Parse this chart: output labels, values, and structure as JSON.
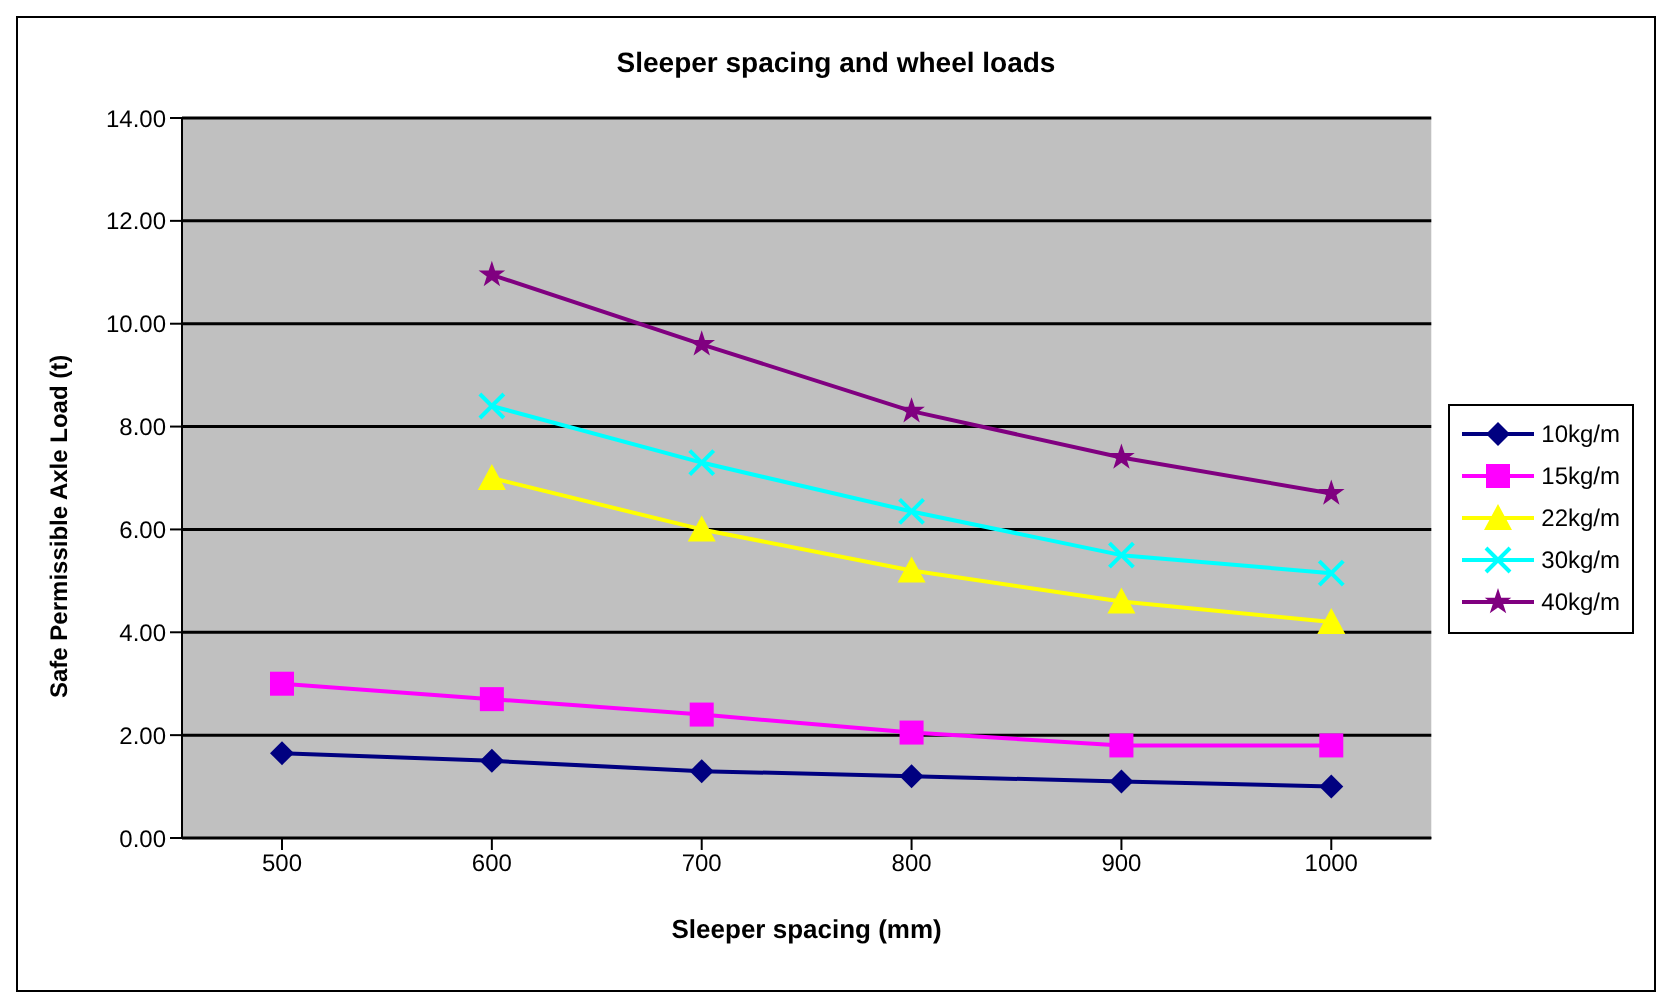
{
  "chart_data": {
    "type": "line",
    "title": "Sleeper spacing and wheel loads",
    "xlabel": "Sleeper spacing (mm)",
    "ylabel": "Safe Permissible Axle Load (t)",
    "categories": [
      "500",
      "600",
      "700",
      "800",
      "900",
      "1000"
    ],
    "ylim": [
      0,
      14
    ],
    "yticks": [
      {
        "value": 0,
        "label": "0.00"
      },
      {
        "value": 2,
        "label": "2.00"
      },
      {
        "value": 4,
        "label": "4.00"
      },
      {
        "value": 6,
        "label": "6.00"
      },
      {
        "value": 8,
        "label": "8.00"
      },
      {
        "value": 10,
        "label": "10.00"
      },
      {
        "value": 12,
        "label": "12.00"
      },
      {
        "value": 14,
        "label": "14.00"
      }
    ],
    "grid": "y",
    "legend": "right",
    "series": [
      {
        "name": "10kg/m",
        "color": "#000080",
        "marker": "diamond",
        "values": [
          1.65,
          1.5,
          1.3,
          1.2,
          1.1,
          1.0
        ]
      },
      {
        "name": "15kg/m",
        "color": "#ff00ff",
        "marker": "square",
        "values": [
          3.0,
          2.7,
          2.4,
          2.05,
          1.8,
          1.8
        ]
      },
      {
        "name": "22kg/m",
        "color": "#ffff00",
        "marker": "triangle",
        "values": [
          null,
          7.0,
          6.0,
          5.2,
          4.6,
          4.2
        ]
      },
      {
        "name": "30kg/m",
        "color": "#00ffff",
        "marker": "cross",
        "values": [
          null,
          8.4,
          7.3,
          6.35,
          5.5,
          5.15
        ]
      },
      {
        "name": "40kg/m",
        "color": "#800080",
        "marker": "star",
        "values": [
          null,
          10.95,
          9.6,
          8.3,
          7.4,
          6.7
        ]
      }
    ]
  }
}
